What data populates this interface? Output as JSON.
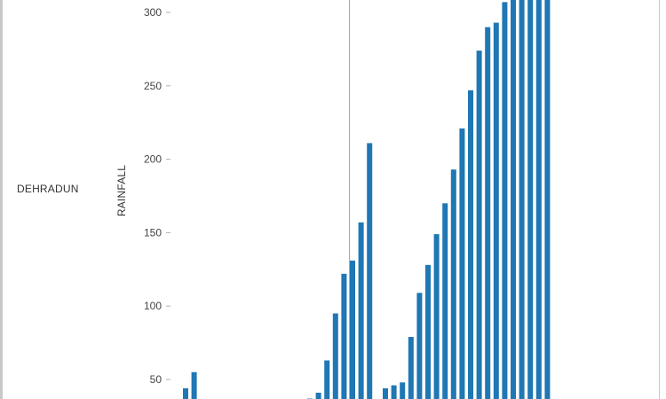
{
  "row_header": "DEHRADUN",
  "chart_data": {
    "type": "bar",
    "ylabel": "RAINFALL",
    "ylim": [
      35,
      315
    ],
    "yticks": [
      50,
      100,
      150,
      200,
      250,
      300
    ],
    "tick_labels": [
      "50",
      "100",
      "150",
      "200",
      "250",
      "300"
    ],
    "bar_color": "#1f77b4",
    "reference_line_color": "#a9a9a9",
    "groups": [
      {
        "values": [
          44,
          55
        ]
      },
      {
        "values": [
          37,
          41,
          63,
          95,
          122,
          131,
          157,
          211
        ]
      },
      {
        "values": [
          44,
          46,
          48,
          79,
          109,
          128,
          149,
          170,
          193,
          221,
          247,
          274,
          290,
          293,
          307,
          315,
          315,
          315,
          315,
          315
        ]
      }
    ]
  }
}
